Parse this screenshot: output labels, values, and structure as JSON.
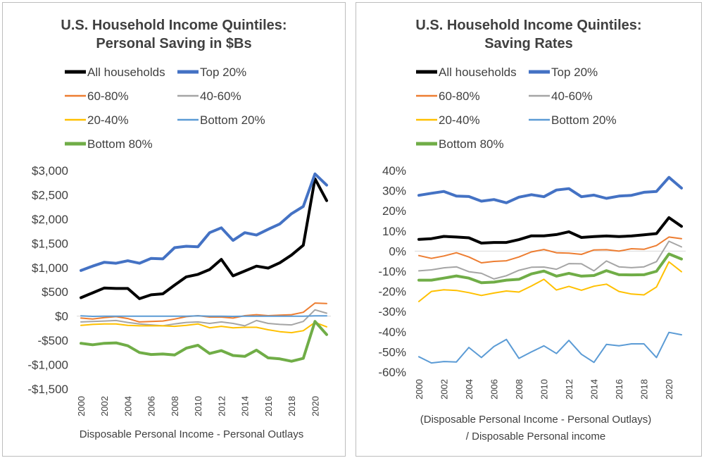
{
  "chart_data": [
    {
      "type": "line",
      "title": "U.S. Household Income Quintiles:",
      "subtitle": "Personal Saving in $Bs",
      "xlabel": "Disposable Personal Income - Personal Outlays",
      "ylabel": "",
      "ylim": [
        -1500,
        3000
      ],
      "yticks": [
        3000,
        2500,
        2000,
        1500,
        1000,
        500,
        0,
        -500,
        -1000,
        -1500
      ],
      "ytick_labels": [
        "$3,000",
        "$2,500",
        "$2,000",
        "$1,500",
        "$1,000",
        "$500",
        "$0",
        "-$500",
        "-$1,000",
        "-$1,500"
      ],
      "x_tick_labels": [
        "2000",
        "2002",
        "2004",
        "2006",
        "2008",
        "2010",
        "2012",
        "2014",
        "2016",
        "2018",
        "2020"
      ],
      "grid": false,
      "legend_position": "top",
      "x": [
        2000,
        2001,
        2002,
        2003,
        2004,
        2005,
        2006,
        2007,
        2008,
        2009,
        2010,
        2011,
        2012,
        2013,
        2014,
        2015,
        2016,
        2017,
        2018,
        2019,
        2020,
        2021
      ],
      "series": [
        {
          "name": "All households",
          "color": "#000000",
          "width": 4,
          "values": [
            380,
            480,
            580,
            570,
            570,
            360,
            440,
            460,
            640,
            810,
            860,
            960,
            1170,
            830,
            930,
            1030,
            990,
            1100,
            1260,
            1460,
            2830,
            2380
          ]
        },
        {
          "name": "Top 20%",
          "color": "#4472C4",
          "width": 4,
          "values": [
            940,
            1030,
            1110,
            1090,
            1140,
            1090,
            1190,
            1180,
            1410,
            1440,
            1430,
            1720,
            1820,
            1560,
            1720,
            1670,
            1790,
            1900,
            2110,
            2260,
            2930,
            2700
          ]
        },
        {
          "name": "60-80%",
          "color": "#ED7D31",
          "width": 2,
          "values": [
            -40,
            -60,
            -30,
            -10,
            -50,
            -120,
            -110,
            -100,
            -60,
            -10,
            10,
            -20,
            -20,
            -40,
            10,
            30,
            10,
            20,
            30,
            80,
            270,
            260
          ]
        },
        {
          "name": "40-60%",
          "color": "#A5A5A5",
          "width": 2,
          "values": [
            -120,
            -110,
            -100,
            -90,
            -130,
            -160,
            -180,
            -200,
            -160,
            -130,
            -120,
            -150,
            -120,
            -150,
            -200,
            -90,
            -150,
            -170,
            -180,
            -110,
            130,
            60
          ]
        },
        {
          "name": "20-40%",
          "color": "#FFC000",
          "width": 2,
          "values": [
            -190,
            -170,
            -160,
            -160,
            -190,
            -200,
            -200,
            -200,
            -210,
            -190,
            -160,
            -240,
            -210,
            -240,
            -230,
            -230,
            -280,
            -320,
            -340,
            -300,
            -130,
            -220
          ]
        },
        {
          "name": "Bottom 20%",
          "color": "#5B9BD5",
          "width": 2,
          "values": [
            5,
            -5,
            0,
            0,
            -2,
            0,
            0,
            0,
            0,
            0,
            5,
            0,
            0,
            -5,
            0,
            0,
            0,
            0,
            0,
            0,
            5,
            5
          ]
        },
        {
          "name": "Bottom 80%",
          "color": "#70AD47",
          "width": 4,
          "values": [
            -560,
            -590,
            -560,
            -550,
            -610,
            -750,
            -790,
            -780,
            -800,
            -660,
            -600,
            -770,
            -710,
            -810,
            -830,
            -700,
            -860,
            -880,
            -930,
            -870,
            -110,
            -380
          ]
        }
      ]
    },
    {
      "type": "line",
      "title": "U.S. Household Income Quintiles:",
      "subtitle": "Saving Rates",
      "xlabel": "(Disposable Personal Income - Personal Outlays)",
      "xlabel2": "/ Disposable Personal income",
      "ylabel": "",
      "ylim": [
        -60,
        40
      ],
      "yticks": [
        40,
        30,
        20,
        10,
        0,
        -10,
        -20,
        -30,
        -40,
        -50,
        -60
      ],
      "ytick_labels": [
        "40%",
        "30%",
        "20%",
        "10%",
        "0%",
        "-10%",
        "-20%",
        "-30%",
        "-40%",
        "-50%",
        "-60%"
      ],
      "x_tick_labels": [
        "2000",
        "2002",
        "2004",
        "2006",
        "2008",
        "2010",
        "2012",
        "2014",
        "2016",
        "2018",
        "2020"
      ],
      "grid": false,
      "legend_position": "top",
      "x": [
        2000,
        2001,
        2002,
        2003,
        2004,
        2005,
        2006,
        2007,
        2008,
        2009,
        2010,
        2011,
        2012,
        2013,
        2014,
        2015,
        2016,
        2017,
        2018,
        2019,
        2020,
        2021
      ],
      "series": [
        {
          "name": "All households",
          "color": "#000000",
          "width": 4,
          "values": [
            5.8,
            6.2,
            7.3,
            7.0,
            6.6,
            4.0,
            4.3,
            4.3,
            5.7,
            7.6,
            7.6,
            8.2,
            9.6,
            6.8,
            7.2,
            7.5,
            7.2,
            7.5,
            8.1,
            8.7,
            16.6,
            12.3
          ]
        },
        {
          "name": "Top 20%",
          "color": "#4472C4",
          "width": 4,
          "values": [
            27.7,
            28.7,
            29.6,
            27.3,
            27.1,
            24.8,
            25.6,
            24.0,
            26.8,
            28.0,
            27.0,
            30.3,
            31.0,
            27.0,
            27.8,
            26.2,
            27.3,
            27.7,
            29.2,
            29.6,
            36.6,
            31.3
          ]
        },
        {
          "name": "60-80%",
          "color": "#ED7D31",
          "width": 2,
          "values": [
            -2.2,
            -3.6,
            -2.4,
            -0.8,
            -2.9,
            -5.8,
            -5.1,
            -4.8,
            -2.9,
            -0.4,
            0.8,
            -0.8,
            -1.0,
            -1.6,
            0.6,
            0.7,
            0.0,
            1.2,
            0.9,
            2.8,
            7.0,
            6.2
          ]
        },
        {
          "name": "40-60%",
          "color": "#A5A5A5",
          "width": 2,
          "values": [
            -9.8,
            -9.3,
            -8.3,
            -7.8,
            -10.2,
            -11.0,
            -13.8,
            -12.2,
            -9.5,
            -8.0,
            -7.9,
            -9.0,
            -6.2,
            -6.3,
            -9.8,
            -4.9,
            -7.8,
            -8.2,
            -7.8,
            -5.2,
            4.9,
            2.1
          ]
        },
        {
          "name": "20-40%",
          "color": "#FFC000",
          "width": 2,
          "values": [
            -25.0,
            -20.0,
            -19.2,
            -19.5,
            -20.6,
            -22.0,
            -20.8,
            -19.8,
            -20.3,
            -17.3,
            -14.0,
            -19.3,
            -17.5,
            -19.4,
            -17.4,
            -16.4,
            -20.0,
            -21.3,
            -21.7,
            -17.8,
            -5.3,
            -10.2
          ]
        },
        {
          "name": "Bottom 20%",
          "color": "#5B9BD5",
          "width": 2,
          "values": [
            -52.4,
            -55.5,
            -54.8,
            -55.0,
            -47.8,
            -52.8,
            -47.3,
            -43.8,
            -53.2,
            -50.0,
            -47.0,
            -50.8,
            -44.3,
            -51.2,
            -55.2,
            -46.3,
            -47.0,
            -46.0,
            -46.0,
            -52.8,
            -40.3,
            -41.5
          ]
        },
        {
          "name": "Bottom 80%",
          "color": "#70AD47",
          "width": 4,
          "values": [
            -14.4,
            -14.4,
            -13.4,
            -12.3,
            -13.4,
            -15.7,
            -15.4,
            -14.4,
            -14.0,
            -11.3,
            -9.9,
            -12.4,
            -11.0,
            -12.4,
            -12.1,
            -9.7,
            -11.7,
            -11.8,
            -11.7,
            -10.0,
            -1.4,
            -3.9
          ]
        }
      ]
    }
  ]
}
